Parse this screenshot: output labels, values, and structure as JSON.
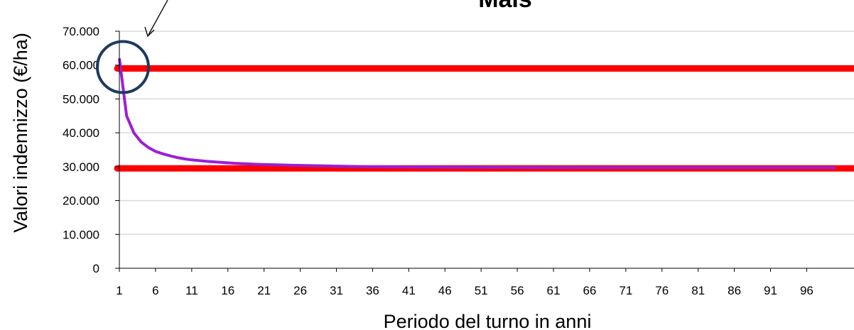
{
  "colors": {
    "series": "#9b1fd6",
    "reference": "#ff0000",
    "highlight": "#1f3a5f",
    "grid": "#d9d9d9",
    "axis": "#000000"
  },
  "chart_data": {
    "type": "line",
    "title": "Mais",
    "xlabel": "Periodo del turno in anni",
    "ylabel": "Valori indennizzo (€/ha)",
    "ylim": [
      0,
      70000
    ],
    "xlim": [
      1,
      100
    ],
    "y_ticks": [
      "0",
      "10.000",
      "20.000",
      "30.000",
      "40.000",
      "50.000",
      "60.000",
      "70.000"
    ],
    "x_ticks": [
      "1",
      "6",
      "11",
      "16",
      "21",
      "26",
      "31",
      "36",
      "41",
      "46",
      "51",
      "56",
      "61",
      "66",
      "71",
      "76",
      "81",
      "86",
      "91",
      "96"
    ],
    "grid": true,
    "series": [
      {
        "x": [
          1,
          2,
          3,
          4,
          5,
          6,
          7,
          8,
          9,
          10,
          11,
          13,
          15,
          17,
          20,
          25,
          30,
          35,
          40,
          50,
          60,
          70,
          80,
          90,
          100
        ],
        "values": [
          62000,
          45000,
          40000,
          37300,
          35700,
          34500,
          33800,
          33200,
          32700,
          32300,
          32000,
          31600,
          31300,
          31000,
          30700,
          30400,
          30200,
          30000,
          29900,
          29800,
          29750,
          29700,
          29700,
          29700,
          29700
        ]
      }
    ],
    "reference_lines": [
      59000,
      29500
    ],
    "annotation": {
      "shape": "circle-with-arrow",
      "target_x": 1,
      "target_y": 59000
    }
  }
}
